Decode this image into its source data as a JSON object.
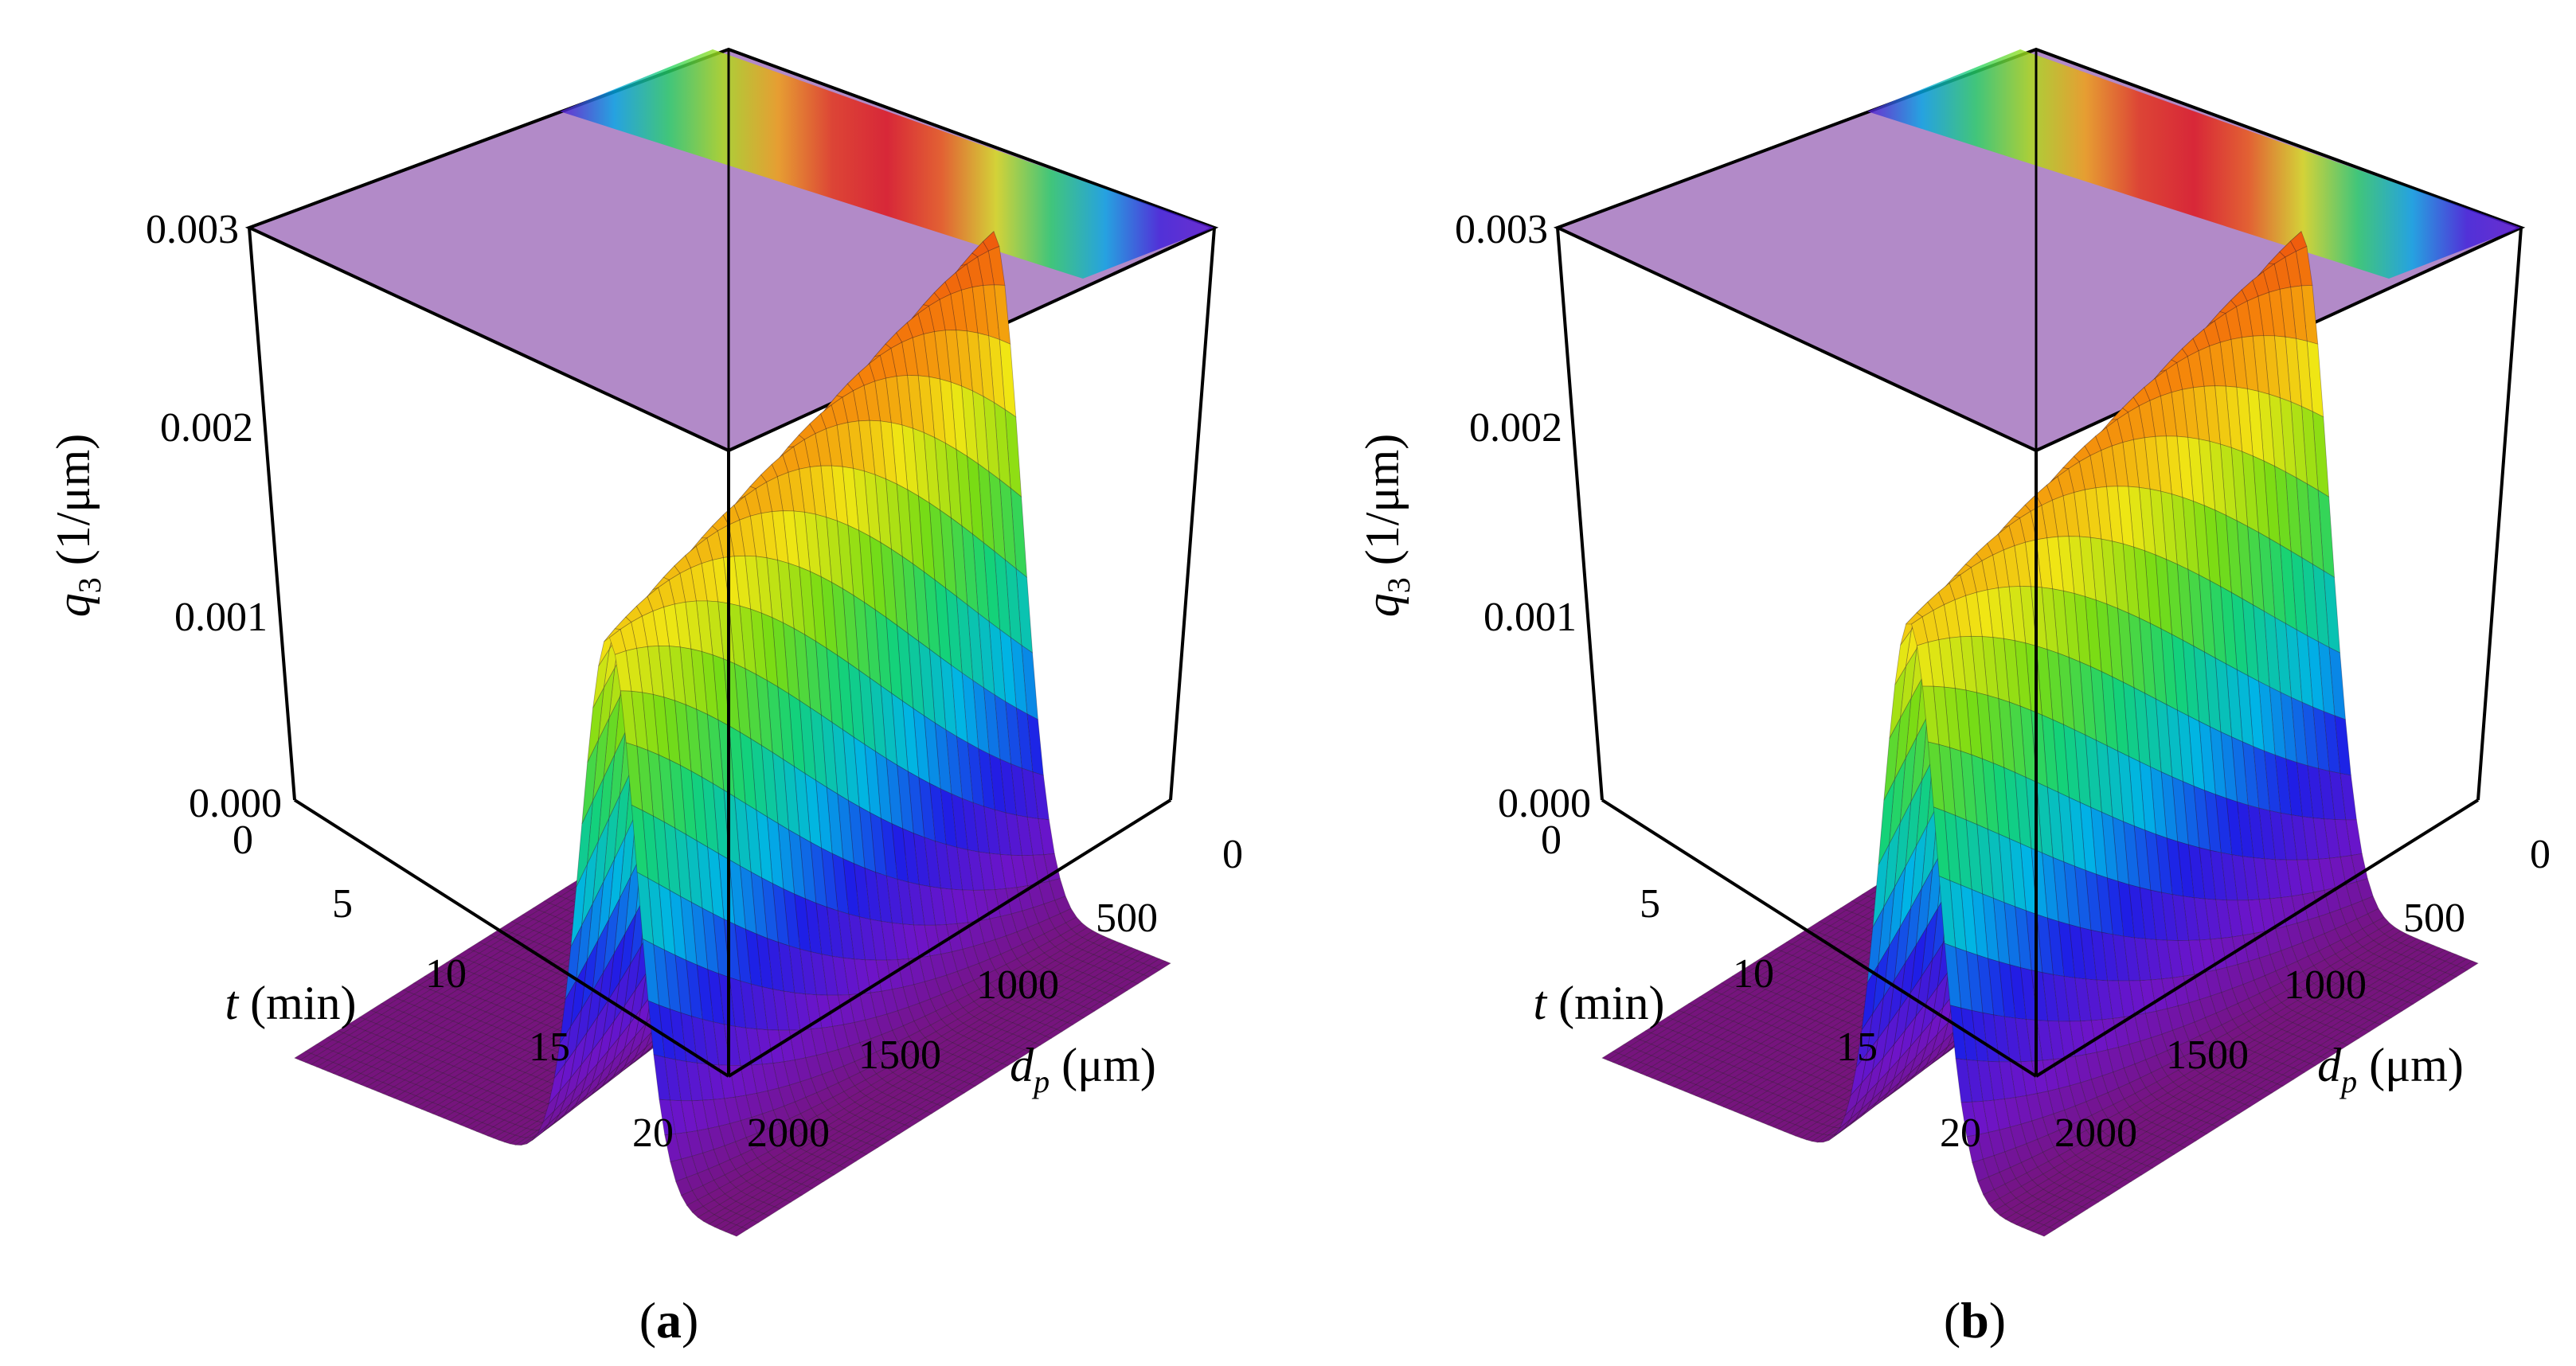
{
  "figure": {
    "panels": [
      "a",
      "b"
    ]
  },
  "chart_data": [
    {
      "type": "surface3d",
      "panel_label": "a",
      "panel_label_parts": {
        "open": "(",
        "letter": "a",
        "close": ")"
      },
      "zlabel": {
        "var": "q",
        "sub": "3",
        "unit": " (1/μm)"
      },
      "tlabel": {
        "var": "t",
        "unit": " (min)"
      },
      "dlabel": {
        "var": "d",
        "sub": "p",
        "unit": " (μm)"
      },
      "z_ticks": [
        "0.000",
        "0.001",
        "0.002",
        "0.003"
      ],
      "t_ticks": [
        "0",
        "5",
        "10",
        "15",
        "20"
      ],
      "d_ticks": [
        "0",
        "500",
        "1000",
        "1500",
        "2000"
      ],
      "zlim": [
        0,
        0.003
      ],
      "tlim": [
        0,
        20
      ],
      "dlim": [
        0,
        2000
      ],
      "colormap": "rainbow (purple → blue → cyan → green → yellow → red)",
      "surface": {
        "description": "Particle size distribution q3(d_p, t): a single ridge that shifts with time",
        "peak_d_start_um": 1200,
        "peak_d_end_um": 1420,
        "peak_height_start": 0.0027,
        "peak_height_end": 0.00225,
        "ridge_half_width_um": 150,
        "plateau_value": 6e-05
      },
      "projection_plane": "top face at z = 0.003 showing the color map projection"
    },
    {
      "type": "surface3d",
      "panel_label": "b",
      "panel_label_parts": {
        "open": "(",
        "letter": "b",
        "close": ")"
      },
      "zlabel": {
        "var": "q",
        "sub": "3",
        "unit": " (1/μm)"
      },
      "tlabel": {
        "var": "t",
        "unit": " (min)"
      },
      "dlabel": {
        "var": "d",
        "sub": "p",
        "unit": " (μm)"
      },
      "z_ticks": [
        "0.000",
        "0.001",
        "0.002",
        "0.003"
      ],
      "t_ticks": [
        "0",
        "5",
        "10",
        "15",
        "20"
      ],
      "d_ticks": [
        "0",
        "500",
        "1000",
        "1500",
        "2000"
      ],
      "zlim": [
        0,
        0.003
      ],
      "tlim": [
        0,
        20
      ],
      "dlim": [
        0,
        2000
      ],
      "colormap": "rainbow (purple → blue → cyan → green → yellow → red)",
      "surface": {
        "description": "Particle size distribution q3(d_p, t): a single ridge that shifts with time",
        "peak_d_start_um": 1200,
        "peak_d_end_um": 1390,
        "peak_height_start": 0.0027,
        "peak_height_end": 0.0023,
        "ridge_half_width_um": 150,
        "plateau_value": 6e-05
      },
      "projection_plane": "top face at z = 0.003 showing the color map projection"
    }
  ]
}
